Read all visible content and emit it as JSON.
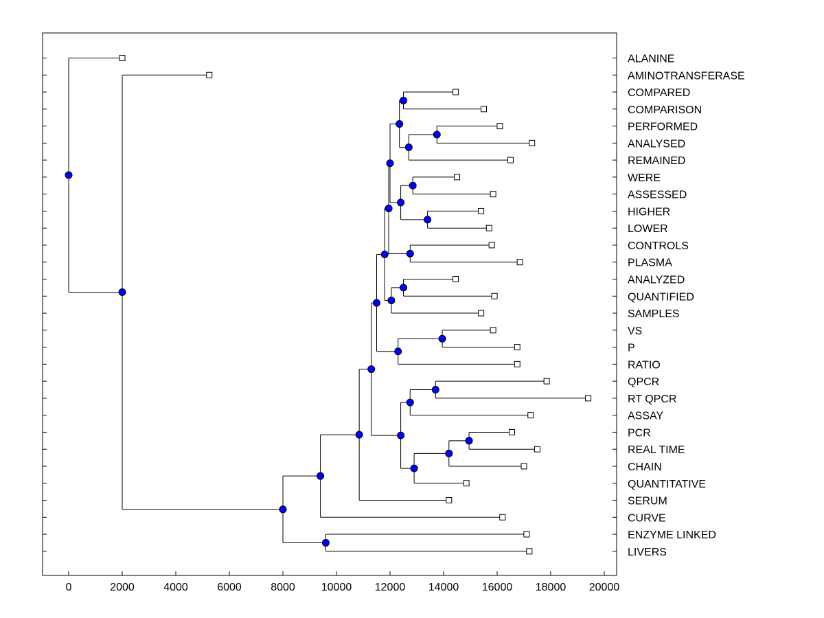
{
  "chart_data": {
    "type": "dendrogram",
    "title": "",
    "xlabel": "",
    "ylabel": "",
    "xlim": [
      -1000,
      20600
    ],
    "x_ticks": [
      0,
      2000,
      4000,
      6000,
      8000,
      10000,
      12000,
      14000,
      16000,
      18000,
      20000
    ],
    "leaves": [
      {
        "label": "ALANINE",
        "x": 2000
      },
      {
        "label": "AMINOTRANSFERASE",
        "x": 5250
      },
      {
        "label": "COMPARED",
        "x": 14450
      },
      {
        "label": "COMPARISON",
        "x": 15500
      },
      {
        "label": "PERFORMED",
        "x": 16100
      },
      {
        "label": "ANALYSED",
        "x": 17300
      },
      {
        "label": "REMAINED",
        "x": 16500
      },
      {
        "label": "WERE",
        "x": 14500
      },
      {
        "label": "ASSESSED",
        "x": 15850
      },
      {
        "label": "HIGHER",
        "x": 15400
      },
      {
        "label": "LOWER",
        "x": 15700
      },
      {
        "label": "CONTROLS",
        "x": 15800
      },
      {
        "label": "PLASMA",
        "x": 16850
      },
      {
        "label": "ANALYZED",
        "x": 14450
      },
      {
        "label": "QUANTIFIED",
        "x": 15900
      },
      {
        "label": "SAMPLES",
        "x": 15400
      },
      {
        "label": "VS",
        "x": 15850
      },
      {
        "label": "P",
        "x": 16750
      },
      {
        "label": "RATIO",
        "x": 16750
      },
      {
        "label": "QPCR",
        "x": 17850
      },
      {
        "label": "RT QPCR",
        "x": 19400
      },
      {
        "label": "ASSAY",
        "x": 17250
      },
      {
        "label": "PCR",
        "x": 16550
      },
      {
        "label": "REAL TIME",
        "x": 17500
      },
      {
        "label": "CHAIN",
        "x": 17000
      },
      {
        "label": "QUANTITATIVE",
        "x": 14850
      },
      {
        "label": "SERUM",
        "x": 14200
      },
      {
        "label": "CURVE",
        "x": 16200
      },
      {
        "label": "ENZYME LINKED",
        "x": 17100
      },
      {
        "label": "LIVERS",
        "x": 17200
      }
    ],
    "merges": [
      {
        "id": "n_comp",
        "x": 12500,
        "children": [
          "L2",
          "L3"
        ]
      },
      {
        "id": "n_perf",
        "x": 13750,
        "children": [
          "L4",
          "L5"
        ]
      },
      {
        "id": "n_perf2",
        "x": 12700,
        "children": [
          "n_perf",
          "L6"
        ]
      },
      {
        "id": "n_comp2",
        "x": 12350,
        "children": [
          "n_comp",
          "n_perf2"
        ]
      },
      {
        "id": "n_were",
        "x": 12850,
        "children": [
          "L7",
          "L8"
        ]
      },
      {
        "id": "n_high",
        "x": 13400,
        "children": [
          "L9",
          "L10"
        ]
      },
      {
        "id": "n_were2",
        "x": 12400,
        "children": [
          "n_were",
          "n_high"
        ]
      },
      {
        "id": "n_mid1",
        "x": 12000,
        "children": [
          "n_comp2",
          "n_were2"
        ]
      },
      {
        "id": "n_ctrl",
        "x": 12750,
        "children": [
          "L11",
          "L12"
        ]
      },
      {
        "id": "n_mid2",
        "x": 11950,
        "children": [
          "n_mid1",
          "n_ctrl"
        ]
      },
      {
        "id": "n_anlz",
        "x": 12500,
        "children": [
          "L13",
          "L14"
        ]
      },
      {
        "id": "n_anlz2",
        "x": 12050,
        "children": [
          "n_anlz",
          "L15"
        ]
      },
      {
        "id": "n_mid3",
        "x": 11800,
        "children": [
          "n_mid2",
          "n_anlz2"
        ]
      },
      {
        "id": "n_vs",
        "x": 13950,
        "children": [
          "L16",
          "L17"
        ]
      },
      {
        "id": "n_vs2",
        "x": 12300,
        "children": [
          "n_vs",
          "L18"
        ]
      },
      {
        "id": "n_mid4",
        "x": 11500,
        "children": [
          "n_mid3",
          "n_vs2"
        ]
      },
      {
        "id": "n_qpcr",
        "x": 13700,
        "children": [
          "L19",
          "L20"
        ]
      },
      {
        "id": "n_qpcr2",
        "x": 12750,
        "children": [
          "n_qpcr",
          "L21"
        ]
      },
      {
        "id": "n_real",
        "x": 14950,
        "children": [
          "L22",
          "L23"
        ]
      },
      {
        "id": "n_real2",
        "x": 14200,
        "children": [
          "n_real",
          "L24"
        ]
      },
      {
        "id": "n_real3",
        "x": 12900,
        "children": [
          "n_real2",
          "L25"
        ]
      },
      {
        "id": "n_assay",
        "x": 12400,
        "children": [
          "n_qpcr2",
          "n_real3"
        ]
      },
      {
        "id": "n_mid5",
        "x": 11300,
        "children": [
          "n_mid4",
          "n_assay"
        ]
      },
      {
        "id": "n_serum",
        "x": 10850,
        "children": [
          "n_mid5",
          "L26"
        ]
      },
      {
        "id": "n_curve",
        "x": 9400,
        "children": [
          "n_serum",
          "L27"
        ]
      },
      {
        "id": "n_enz",
        "x": 9600,
        "children": [
          "L28",
          "L29"
        ]
      },
      {
        "id": "n_big",
        "x": 8000,
        "children": [
          "n_curve",
          "n_enz"
        ]
      },
      {
        "id": "n_amino",
        "x": 2000,
        "children": [
          "L1",
          "n_big"
        ]
      },
      {
        "id": "n_root",
        "x": 0,
        "children": [
          "L0",
          "n_amino"
        ]
      }
    ]
  }
}
